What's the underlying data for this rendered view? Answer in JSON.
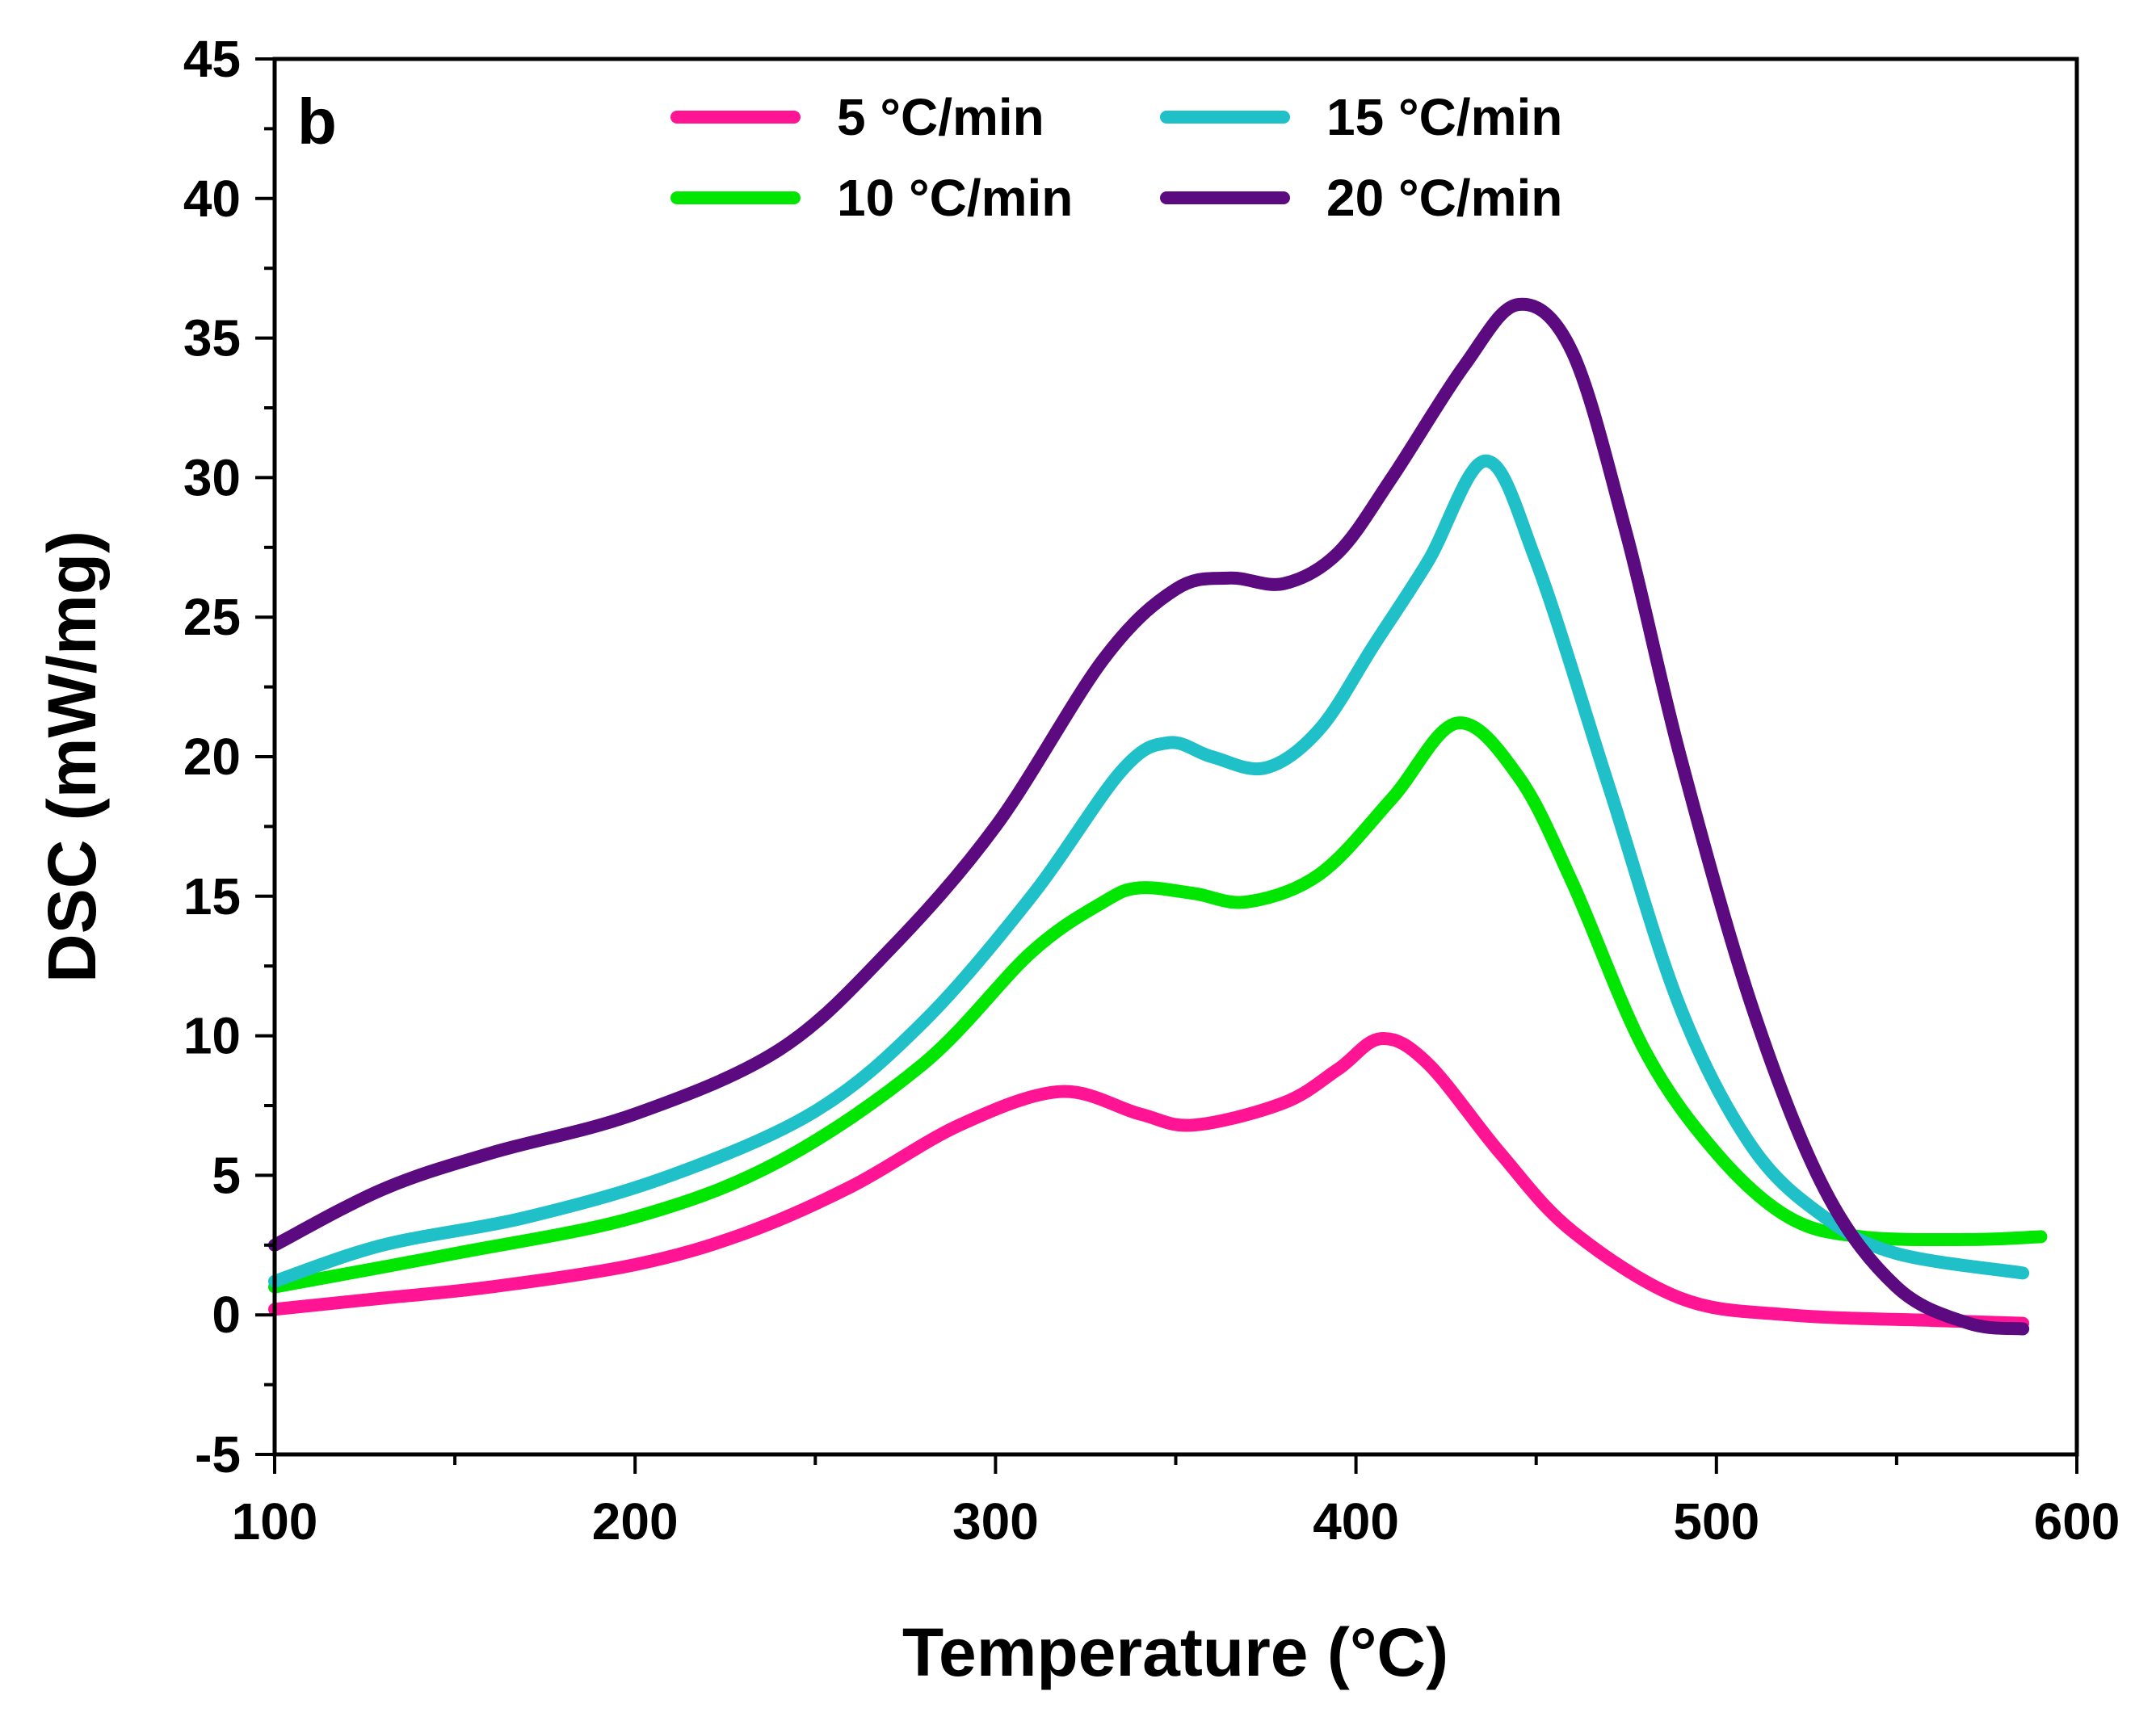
{
  "chart_data": {
    "type": "line",
    "panel_label": "b",
    "xlabel": "Temperature (°C)",
    "ylabel": "DSC (mW/mg)",
    "xlim": [
      100,
      600
    ],
    "ylim": [
      -5,
      45
    ],
    "x_ticks": [
      100,
      200,
      300,
      400,
      500,
      600
    ],
    "y_ticks": [
      -5,
      0,
      5,
      10,
      15,
      20,
      25,
      30,
      35,
      40,
      45
    ],
    "y_tick_labels": [
      "-5",
      "0",
      "5",
      "10",
      "15",
      "20",
      "25",
      "30",
      "35",
      "40",
      "45"
    ],
    "grid": false,
    "legend_position": "top-center",
    "series": [
      {
        "name": "5 °C/min",
        "color": "#ff1493",
        "x": [
          100,
          130,
          160,
          200,
          230,
          260,
          290,
          318,
          340,
          355,
          380,
          395,
          407,
          420,
          440,
          460,
          490,
          520,
          560,
          585
        ],
        "y": [
          0.2,
          0.6,
          1.0,
          1.8,
          2.9,
          4.6,
          6.8,
          8.0,
          7.2,
          6.8,
          7.6,
          8.8,
          9.9,
          9.0,
          5.8,
          3.0,
          0.6,
          0.0,
          -0.2,
          -0.3
        ]
      },
      {
        "name": "10 °C/min",
        "color": "#00e600",
        "x": [
          100,
          150,
          200,
          240,
          280,
          310,
          330,
          340,
          355,
          370,
          390,
          410,
          428,
          445,
          460,
          480,
          500,
          520,
          540,
          570,
          590
        ],
        "y": [
          1.0,
          2.2,
          3.5,
          5.5,
          9.0,
          13.0,
          14.8,
          15.3,
          15.1,
          14.8,
          15.8,
          18.5,
          21.2,
          19.3,
          15.5,
          9.5,
          5.8,
          3.5,
          2.8,
          2.7,
          2.8
        ]
      },
      {
        "name": "15 °C/min",
        "color": "#20c0c8",
        "x": [
          100,
          130,
          170,
          210,
          250,
          280,
          310,
          335,
          348,
          360,
          375,
          390,
          405,
          420,
          436,
          450,
          470,
          490,
          510,
          530,
          550,
          585
        ],
        "y": [
          1.2,
          2.5,
          3.5,
          5.0,
          7.3,
          10.5,
          15.0,
          19.5,
          20.5,
          20.0,
          19.6,
          21.0,
          24.0,
          27.0,
          30.6,
          27.0,
          19.0,
          11.0,
          6.0,
          3.5,
          2.2,
          1.5
        ]
      },
      {
        "name": "20 °C/min",
        "color": "#5b0a80",
        "x": [
          100,
          130,
          160,
          200,
          240,
          270,
          300,
          330,
          350,
          365,
          380,
          395,
          410,
          430,
          445,
          460,
          475,
          490,
          510,
          530,
          550,
          570,
          585
        ],
        "y": [
          2.5,
          4.5,
          5.8,
          7.2,
          9.5,
          13.0,
          17.5,
          23.5,
          26.0,
          26.4,
          26.2,
          27.3,
          30.0,
          34.0,
          36.2,
          34.5,
          28.0,
          20.0,
          11.0,
          4.5,
          1.0,
          -0.3,
          -0.5
        ]
      }
    ]
  }
}
